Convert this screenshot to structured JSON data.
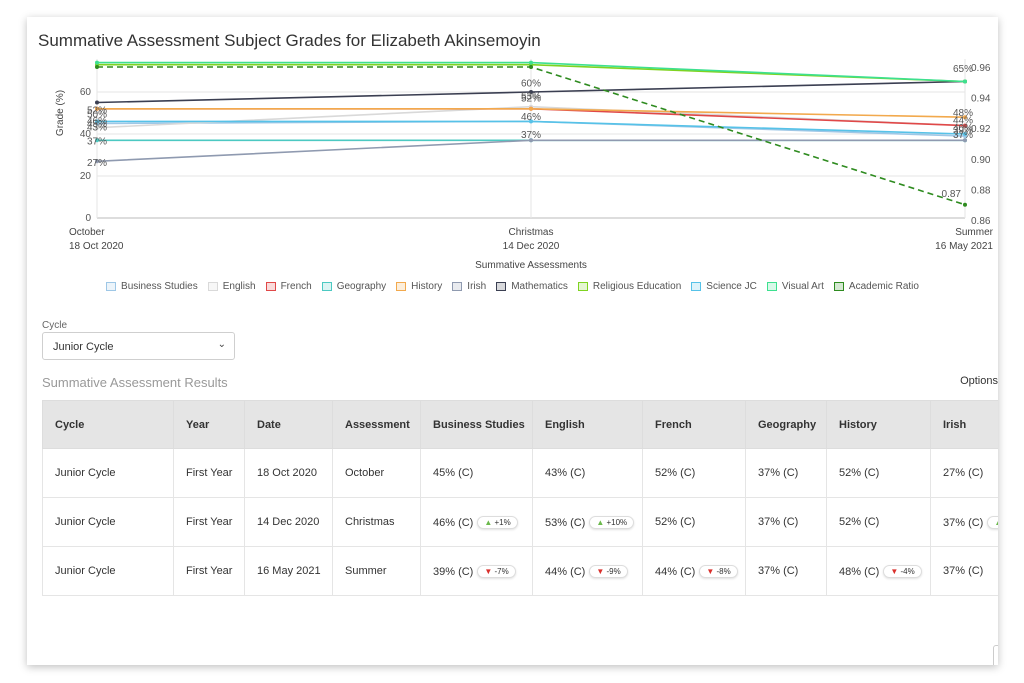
{
  "page": {
    "title": "Summative Assessment Subject Grades for Elizabeth Akinsemoyin"
  },
  "chart_data": {
    "type": "line",
    "title": "Summative Assessment Subject Grades for Elizabeth Akinsemoyin",
    "xlabel": "Summative Assessments",
    "ylabel": "Grade (%)",
    "ylim": [
      0,
      60
    ],
    "y_ticks": [
      "0",
      "20",
      "40",
      "60"
    ],
    "y2_ticks": [
      "0.86",
      "0.88",
      "0.90",
      "0.92",
      "0.94",
      "0.96"
    ],
    "x_labels": [
      {
        "line1": "October",
        "line2": "18 Oct 2020"
      },
      {
        "line1": "Christmas",
        "line2": "14 Dec 2020"
      },
      {
        "line1": "Summer",
        "line2": "16 May 2021"
      }
    ],
    "series": [
      {
        "name": "Business Studies",
        "color": "#9ec7e6",
        "values": [
          45,
          46,
          39
        ]
      },
      {
        "name": "English",
        "color": "#d9d9d9",
        "values": [
          43,
          53,
          44
        ]
      },
      {
        "name": "French",
        "color": "#e04848",
        "values": [
          52,
          52,
          44
        ]
      },
      {
        "name": "Geography",
        "color": "#4cc9c2",
        "values": [
          37,
          37,
          37
        ]
      },
      {
        "name": "History",
        "color": "#f2a94d",
        "values": [
          52,
          52,
          48
        ]
      },
      {
        "name": "Irish",
        "color": "#8f9ab0",
        "values": [
          27,
          37,
          37
        ]
      },
      {
        "name": "Mathematics",
        "color": "#3b3f52",
        "values": [
          55,
          60,
          65
        ]
      },
      {
        "name": "Religious Education",
        "color": "#7fd321",
        "values": [
          73,
          73,
          65
        ]
      },
      {
        "name": "Science JC",
        "color": "#56c2e8",
        "values": [
          46,
          46,
          40
        ]
      },
      {
        "name": "Visual Art",
        "color": "#3de08f",
        "values": [
          74,
          74,
          65
        ]
      },
      {
        "name": "Academic Ratio",
        "color": "#2e8b1f",
        "values": [
          0.96,
          0.96,
          0.87
        ],
        "dashed": true
      }
    ],
    "point_labels": [
      {
        "text": "52%",
        "i": 0,
        "v": 51.2
      },
      {
        "text": "50%",
        "i": 0,
        "v": 49.2
      },
      {
        "text": "46%",
        "i": 0,
        "v": 46.3
      },
      {
        "text": "45%",
        "i": 0,
        "v": 44.8
      },
      {
        "text": "43%",
        "i": 0,
        "v": 43.2
      },
      {
        "text": "37%",
        "i": 0,
        "v": 36.5
      },
      {
        "text": "27%",
        "i": 0,
        "v": 26.2
      },
      {
        "text": "60%",
        "i": 1,
        "v": 64.0
      },
      {
        "text": "53%",
        "i": 1,
        "v": 57.8
      },
      {
        "text": "52%",
        "i": 1,
        "v": 56.8
      },
      {
        "text": "46%",
        "i": 1,
        "v": 48.0
      },
      {
        "text": "37%",
        "i": 1,
        "v": 39.5
      },
      {
        "text": "65%",
        "i": 2,
        "v": 71.0
      },
      {
        "text": "48%",
        "i": 2,
        "v": 50.0
      },
      {
        "text": "44%",
        "i": 2,
        "v": 46.5
      },
      {
        "text": "40%",
        "i": 2,
        "v": 42.8
      },
      {
        "text": "39%",
        "i": 2,
        "v": 41.7
      },
      {
        "text": "37%",
        "i": 2,
        "v": 39.5
      }
    ],
    "ratio_labels": [
      {
        "text": "0.87",
        "i": 2,
        "v": 0.877
      }
    ],
    "legend_placement": "bottom",
    "grid": true
  },
  "filters": {
    "cycle_label": "Cycle",
    "cycle_value": "Junior Cycle"
  },
  "results": {
    "heading": "Summative Assessment Results",
    "options_label": "Options",
    "columns": [
      "Cycle",
      "Year",
      "Date",
      "Assessment",
      "Business Studies",
      "English",
      "French",
      "Geography",
      "History",
      "Irish"
    ],
    "rows": [
      {
        "cells": [
          "Junior Cycle",
          "First Year",
          "18 Oct 2020",
          "October",
          "45% (C)",
          "43% (C)",
          "52% (C)",
          "37% (C)",
          "52% (C)",
          "27% (C)"
        ],
        "deltas": {}
      },
      {
        "cells": [
          "Junior Cycle",
          "First Year",
          "14 Dec 2020",
          "Christmas",
          "46% (C)",
          "53% (C)",
          "52% (C)",
          "37% (C)",
          "52% (C)",
          "37% (C)"
        ],
        "deltas": {
          "4": {
            "dir": "up",
            "text": "+1%"
          },
          "5": {
            "dir": "up",
            "text": "+10%"
          },
          "9": {
            "dir": "up",
            "text": ""
          }
        }
      },
      {
        "cells": [
          "Junior Cycle",
          "First Year",
          "16 May 2021",
          "Summer",
          "39% (C)",
          "44% (C)",
          "44% (C)",
          "37% (C)",
          "48% (C)",
          "37% (C)"
        ],
        "deltas": {
          "4": {
            "dir": "down",
            "text": "-7%"
          },
          "5": {
            "dir": "down",
            "text": "-9%"
          },
          "6": {
            "dir": "down",
            "text": "-8%"
          },
          "8": {
            "dir": "down",
            "text": "-4%"
          }
        }
      }
    ]
  }
}
